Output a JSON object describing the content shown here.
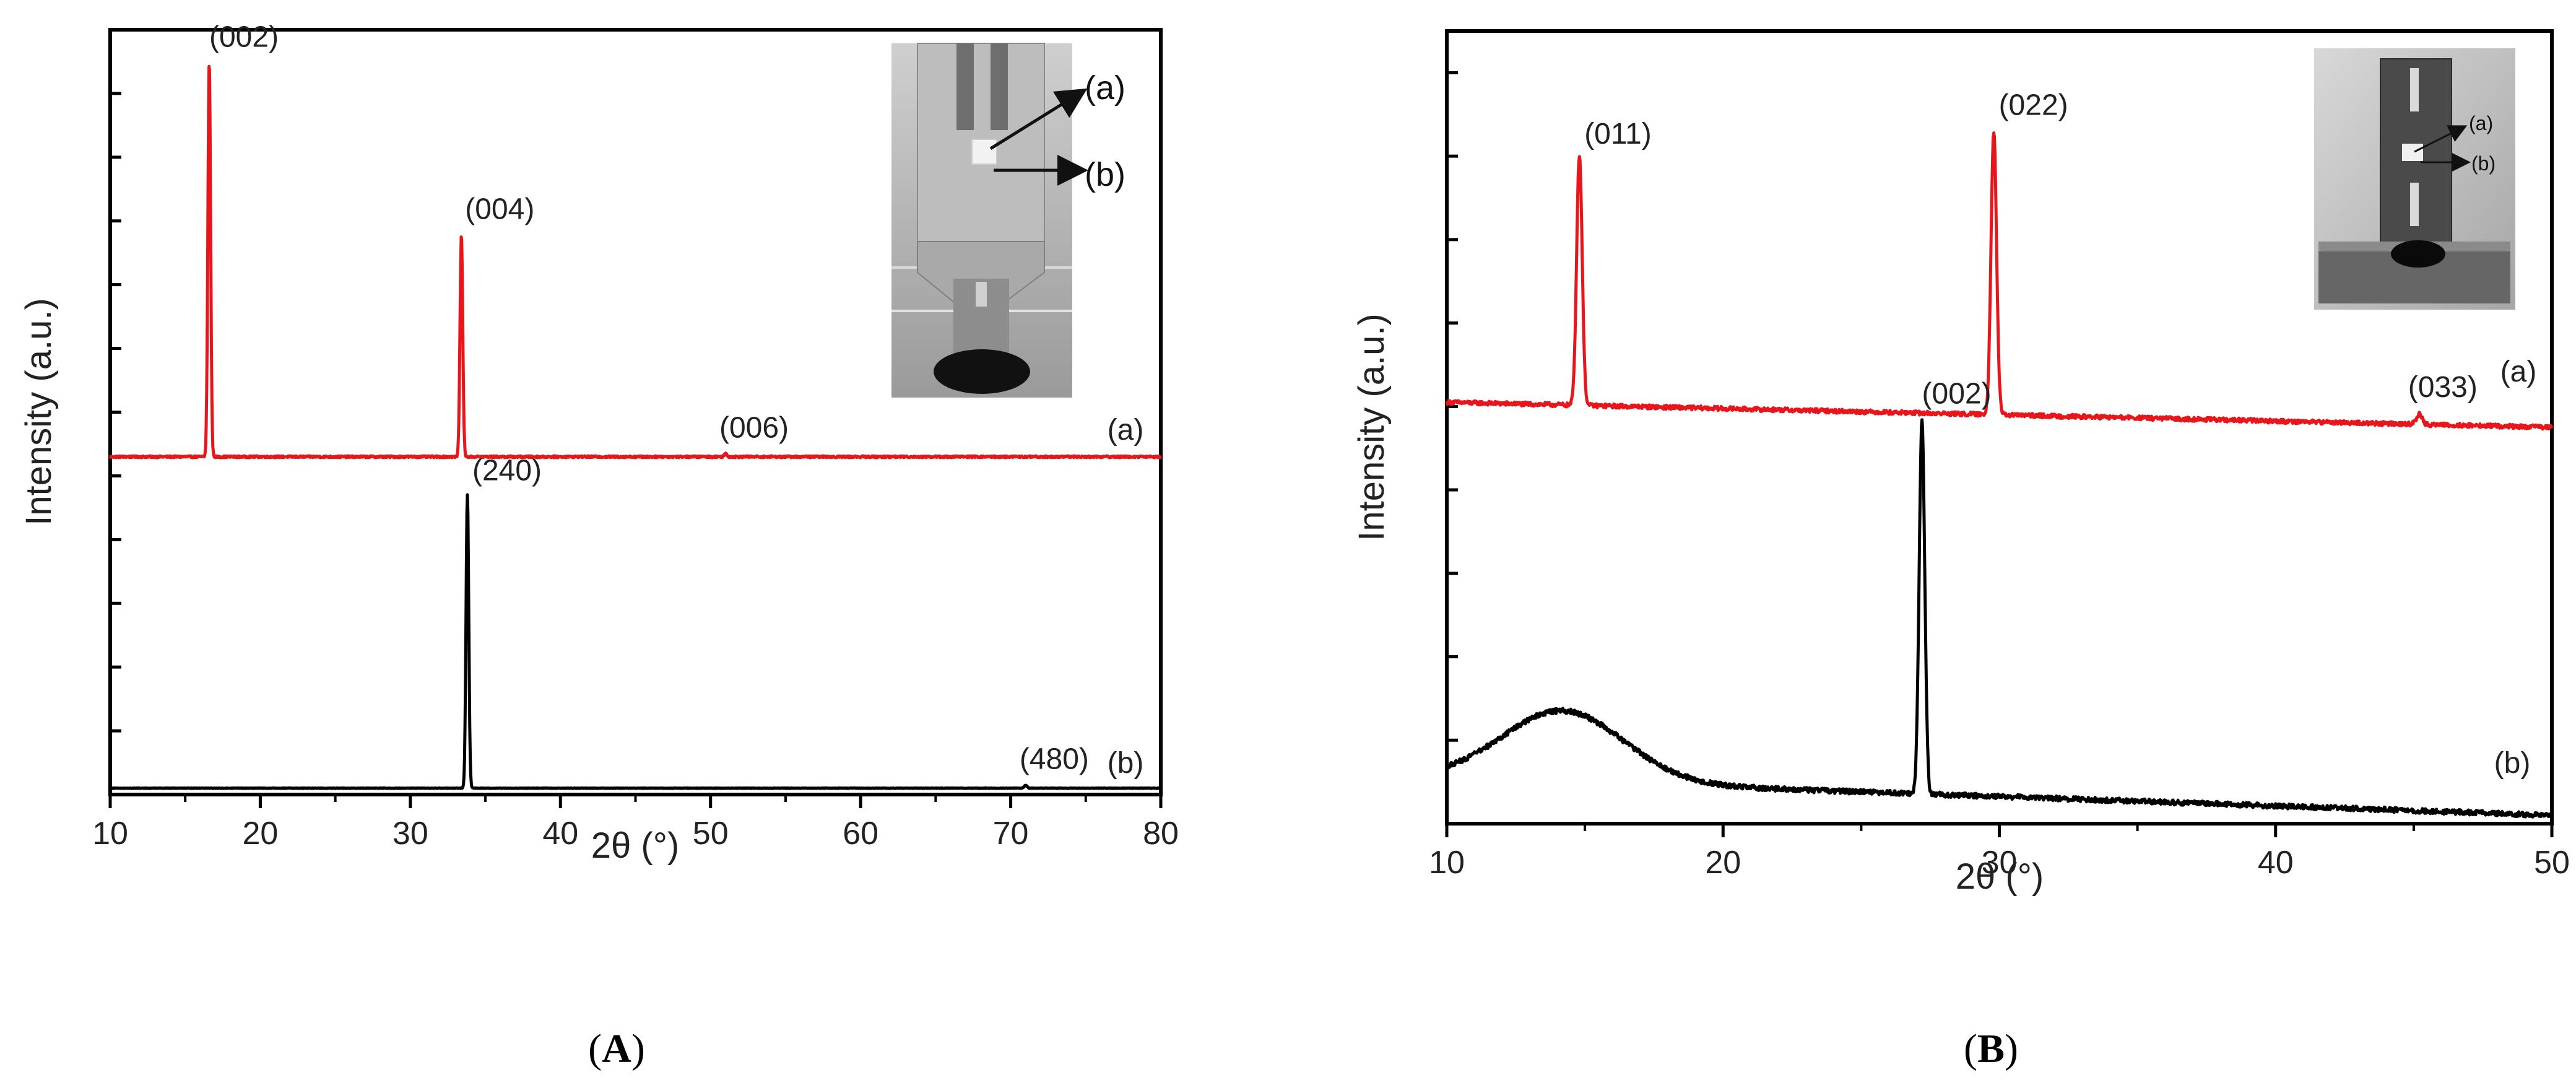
{
  "chart_data": [
    {
      "type": "line",
      "panel": "A",
      "caption_open": "(",
      "caption_letter": "A",
      "caption_close": ")",
      "xlabel": "2θ (°)",
      "ylabel": "Intensity (a.u.)",
      "xlim": [
        10,
        80
      ],
      "xticks": [
        "10",
        "20",
        "30",
        "40",
        "50",
        "60",
        "70",
        "80"
      ],
      "ylim": [
        0,
        12
      ],
      "yticks": [
        1,
        2,
        3,
        4,
        5,
        6,
        7,
        8,
        9,
        10,
        11,
        12
      ],
      "series": [
        {
          "name": "(a)",
          "color": "#e8151b",
          "baseline": 5.3,
          "peaks": [
            {
              "x": 16.6,
              "height": 6.2,
              "label": "(002)"
            },
            {
              "x": 33.4,
              "height": 3.5,
              "label": "(004)"
            },
            {
              "x": 51.0,
              "height": 0.05,
              "label": "(006)"
            }
          ]
        },
        {
          "name": "(b)",
          "color": "#000000",
          "baseline": 0.1,
          "peaks": [
            {
              "x": 33.8,
              "height": 4.6,
              "label": "(240)"
            },
            {
              "x": 71.0,
              "height": 0.05,
              "label": "(480)"
            }
          ]
        }
      ],
      "inset": {
        "arrow_labels": [
          "(a)",
          "(b)"
        ]
      }
    },
    {
      "type": "line",
      "panel": "B",
      "caption_open": "(",
      "caption_letter": "B",
      "caption_close": ")",
      "xlabel": "2θ (°)",
      "ylabel": "Intensity (a.u.)",
      "xlim": [
        10,
        50
      ],
      "xticks": [
        "10",
        "20",
        "30",
        "40",
        "50"
      ],
      "ylim": [
        0,
        9.5
      ],
      "yticks": [
        0,
        1,
        2,
        3,
        4,
        5,
        6,
        7,
        8,
        9
      ],
      "series": [
        {
          "name": "(a)",
          "color": "#e8151b",
          "baseline_start": 5.05,
          "baseline_end": 4.75,
          "peaks": [
            {
              "x": 14.8,
              "height": 3.0,
              "label": "(011)"
            },
            {
              "x": 29.8,
              "height": 3.4,
              "label": "(022)"
            },
            {
              "x": 45.2,
              "height": 0.12,
              "label": "(033)"
            }
          ]
        },
        {
          "name": "(b)",
          "color": "#000000",
          "baseline_start": 0.55,
          "baseline_end": 0.1,
          "hump": {
            "x": 14.2,
            "height": 0.85
          },
          "peaks": [
            {
              "x": 27.2,
              "height": 4.5,
              "label": "(002)"
            }
          ]
        }
      ],
      "inset": {
        "arrow_labels": [
          "(a)",
          "(b)"
        ]
      }
    }
  ]
}
